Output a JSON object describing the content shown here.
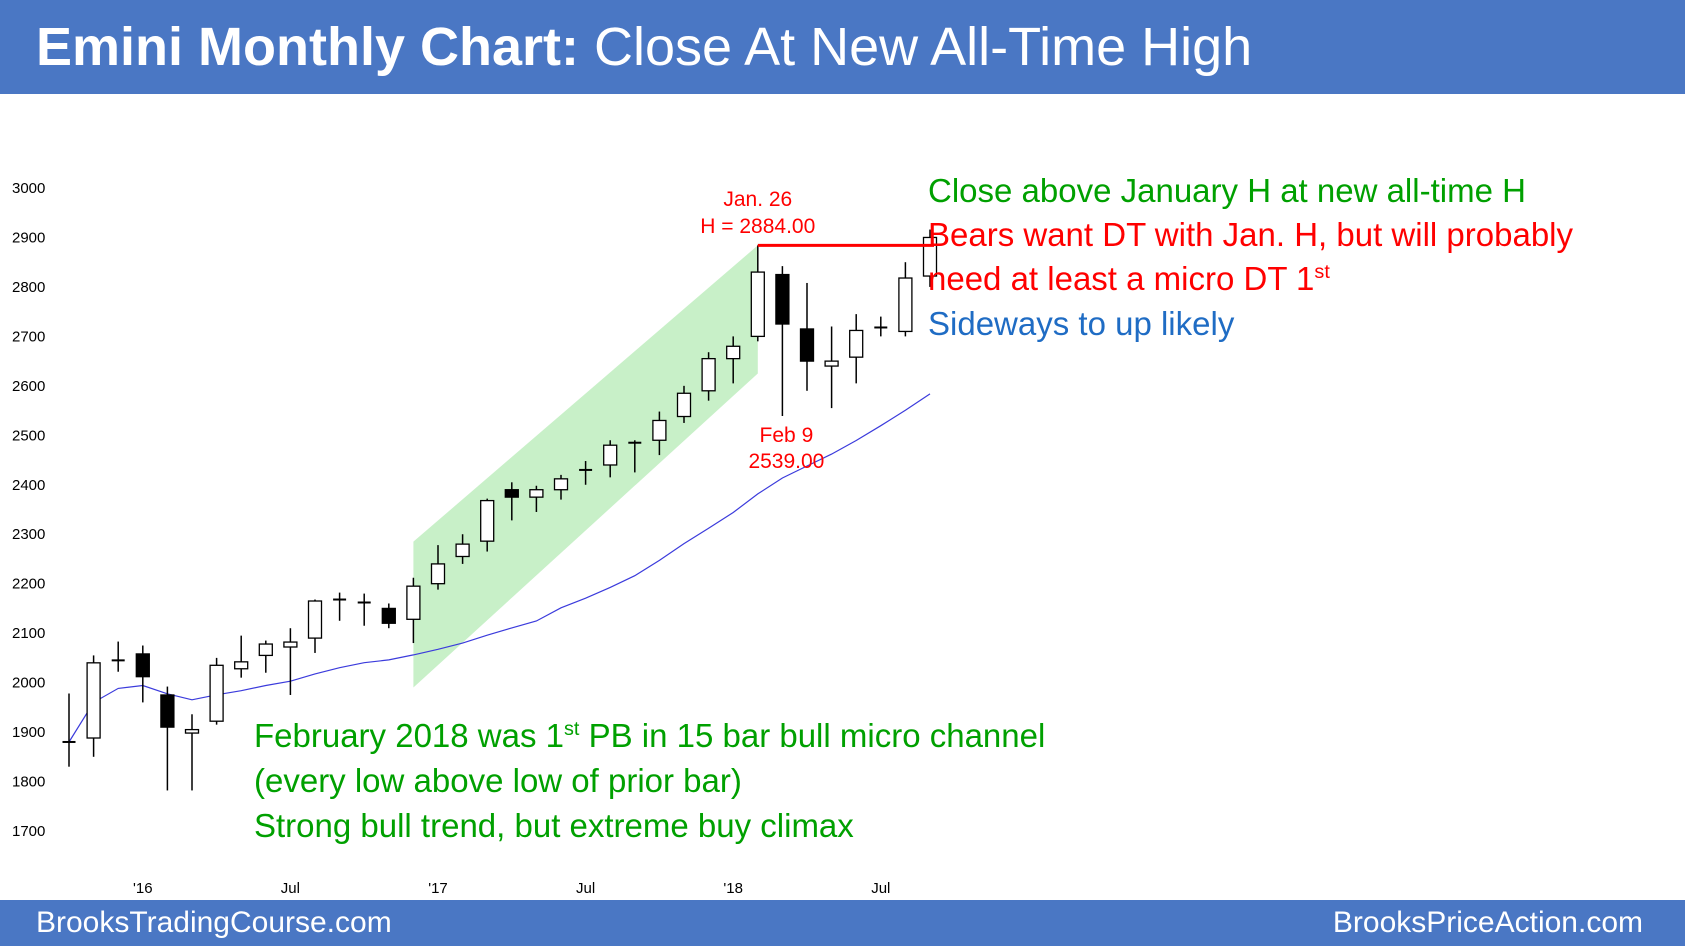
{
  "header": {
    "title_bold": "Emini Monthly Chart:",
    "title_rest": " Close At New All-Time High"
  },
  "footer": {
    "left": "BrooksTradingCourse.com",
    "right": "BrooksPriceAction.com"
  },
  "notes": {
    "line1": "Close above January H at new all-time H",
    "line2": "Bears want DT with Jan. H, but will probably",
    "line3": "need at least a micro DT 1",
    "line3_sup": "st",
    "line4": "Sideways to up likely",
    "bottom1": "February 2018 was 1",
    "bottom1_sup": "st",
    "bottom1_rest": " PB in 15 bar bull micro channel",
    "bottom2": "(every low above low of prior bar)",
    "bottom3": "Strong bull trend, but extreme buy climax"
  },
  "chart_data": {
    "type": "candlestick",
    "title": "Emini Monthly Chart: Close At New All-Time High",
    "ylim": [
      1700,
      3000
    ],
    "yticks": [
      "1700",
      "1800",
      "1900",
      "2000",
      "2100",
      "2200",
      "2300",
      "2400",
      "2500",
      "2600",
      "2700",
      "2800",
      "2900",
      "3000"
    ],
    "xticks": [
      "'16",
      "Jul",
      "'17",
      "Jul",
      "'18",
      "Jul"
    ],
    "grid": false,
    "annotations": [
      {
        "text": "Jan. 26",
        "color": "#ff0000"
      },
      {
        "text": "H = 2884.00",
        "color": "#ff0000"
      },
      {
        "text": "Feb 9",
        "color": "#ff0000"
      },
      {
        "text": "2539.00",
        "color": "#ff0000"
      }
    ],
    "resistance_line": {
      "value": 2884.0,
      "color": "#ff0000"
    },
    "moving_average_color": "#3b3bdc",
    "channel_color": "#c8f0c8",
    "candles": [
      {
        "o": 1880,
        "h": 1978,
        "l": 1830,
        "c": 1880
      },
      {
        "o": 1888,
        "h": 2055,
        "l": 1850,
        "c": 2040
      },
      {
        "o": 2045,
        "h": 2083,
        "l": 2022,
        "c": 2045
      },
      {
        "o": 2058,
        "h": 2075,
        "l": 1960,
        "c": 2012
      },
      {
        "o": 1975,
        "h": 1992,
        "l": 1782,
        "c": 1910
      },
      {
        "o": 1898,
        "h": 1936,
        "l": 1782,
        "c": 1905
      },
      {
        "o": 1922,
        "h": 2050,
        "l": 1915,
        "c": 2035
      },
      {
        "o": 2028,
        "h": 2095,
        "l": 2010,
        "c": 2042
      },
      {
        "o": 2055,
        "h": 2085,
        "l": 2020,
        "c": 2078
      },
      {
        "o": 2072,
        "h": 2110,
        "l": 1975,
        "c": 2082
      },
      {
        "o": 2090,
        "h": 2168,
        "l": 2060,
        "c": 2165
      },
      {
        "o": 2168,
        "h": 2182,
        "l": 2125,
        "c": 2168
      },
      {
        "o": 2162,
        "h": 2180,
        "l": 2115,
        "c": 2162
      },
      {
        "o": 2150,
        "h": 2160,
        "l": 2110,
        "c": 2120
      },
      {
        "o": 2128,
        "h": 2212,
        "l": 2080,
        "c": 2195
      },
      {
        "o": 2200,
        "h": 2278,
        "l": 2188,
        "c": 2240
      },
      {
        "o": 2255,
        "h": 2300,
        "l": 2240,
        "c": 2280
      },
      {
        "o": 2286,
        "h": 2372,
        "l": 2265,
        "c": 2368
      },
      {
        "o": 2390,
        "h": 2405,
        "l": 2328,
        "c": 2375
      },
      {
        "o": 2375,
        "h": 2398,
        "l": 2345,
        "c": 2390
      },
      {
        "o": 2390,
        "h": 2420,
        "l": 2370,
        "c": 2412
      },
      {
        "o": 2430,
        "h": 2448,
        "l": 2400,
        "c": 2430
      },
      {
        "o": 2440,
        "h": 2490,
        "l": 2415,
        "c": 2480
      },
      {
        "o": 2482,
        "h": 2490,
        "l": 2425,
        "c": 2485
      },
      {
        "o": 2490,
        "h": 2548,
        "l": 2460,
        "c": 2530
      },
      {
        "o": 2538,
        "h": 2600,
        "l": 2525,
        "c": 2585
      },
      {
        "o": 2590,
        "h": 2668,
        "l": 2570,
        "c": 2655
      },
      {
        "o": 2655,
        "h": 2700,
        "l": 2605,
        "c": 2680
      },
      {
        "o": 2700,
        "h": 2884,
        "l": 2690,
        "c": 2830
      },
      {
        "o": 2825,
        "h": 2842,
        "l": 2539,
        "c": 2725
      },
      {
        "o": 2715,
        "h": 2808,
        "l": 2590,
        "c": 2650
      },
      {
        "o": 2640,
        "h": 2720,
        "l": 2555,
        "c": 2650
      },
      {
        "o": 2658,
        "h": 2745,
        "l": 2605,
        "c": 2712
      },
      {
        "o": 2718,
        "h": 2740,
        "l": 2700,
        "c": 2718
      },
      {
        "o": 2710,
        "h": 2850,
        "l": 2700,
        "c": 2818
      },
      {
        "o": 2822,
        "h": 2916,
        "l": 2800,
        "c": 2900
      }
    ]
  }
}
